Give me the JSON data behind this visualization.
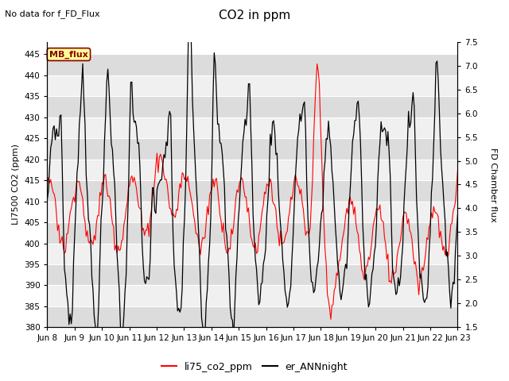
{
  "title": "CO2 in ppm",
  "subtitle": "No data for f_FD_Flux",
  "ylabel_left": "LI7500 CO2 (ppm)",
  "ylabel_right": "FD Chamber flux",
  "ylim_left": [
    380,
    448
  ],
  "ylim_right": [
    1.5,
    7.5
  ],
  "yticks_left": [
    380,
    385,
    390,
    395,
    400,
    405,
    410,
    415,
    420,
    425,
    430,
    435,
    440,
    445
  ],
  "yticks_right": [
    1.5,
    2.0,
    2.5,
    3.0,
    3.5,
    4.0,
    4.5,
    5.0,
    5.5,
    6.0,
    6.5,
    7.0,
    7.5
  ],
  "xtick_labels": [
    "Jun 8",
    "Jun 9",
    "Jun 10",
    "Jun 11",
    "Jun 12",
    "Jun 13",
    "Jun 14",
    "Jun 15",
    "Jun 16",
    "Jun 17",
    "Jun 18",
    "Jun 19",
    "Jun 20",
    "Jun 21",
    "Jun 22",
    "Jun 23"
  ],
  "legend_label_red": "li75_co2_ppm",
  "legend_label_black": "er_ANNnight",
  "mb_flux_label": "MB_flux",
  "line_color_red": "#FF0000",
  "line_color_black": "#000000",
  "mb_flux_box_color": "#FFFF99",
  "mb_flux_text_color": "#8B0000",
  "mb_flux_border_color": "#8B0000",
  "background_color": "#FFFFFF",
  "grid_color": "#CCCCCC",
  "title_fontsize": 11,
  "subtitle_fontsize": 8,
  "axis_label_fontsize": 8,
  "tick_fontsize": 7.5,
  "legend_fontsize": 9,
  "band_color_dark": "#DCDCDC",
  "band_color_light": "#F0F0F0"
}
